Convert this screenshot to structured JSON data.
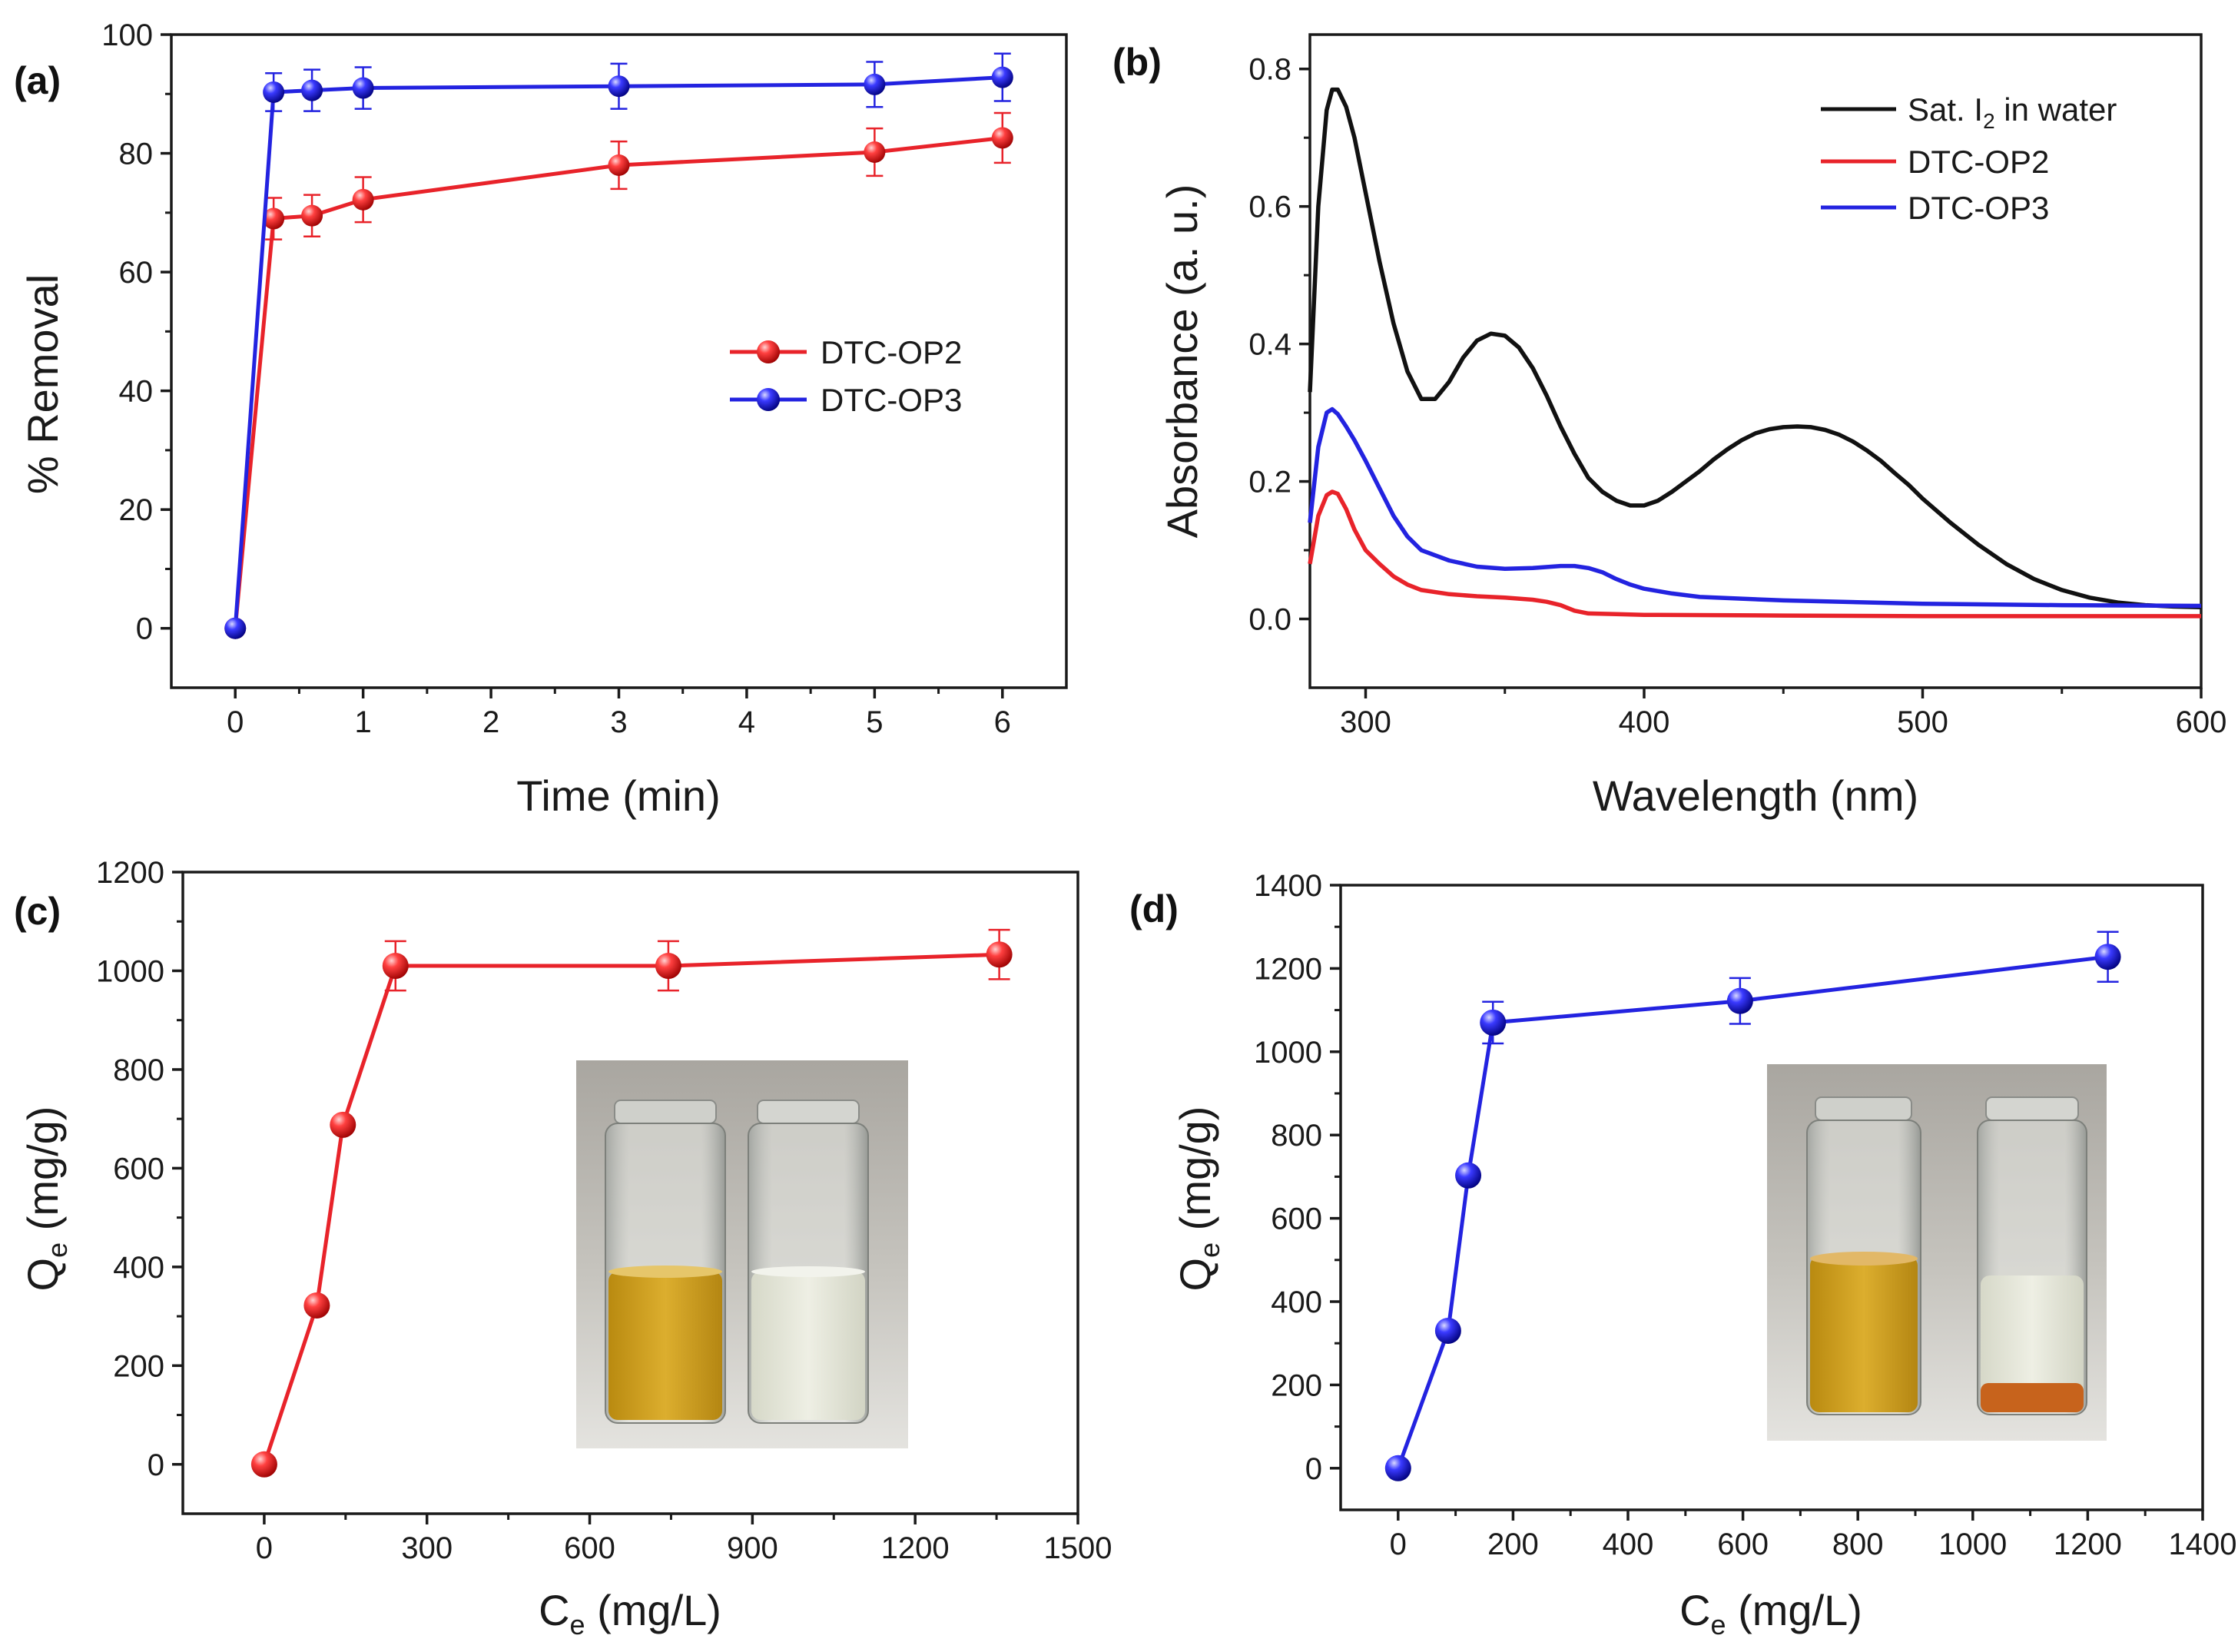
{
  "figure": {
    "colors": {
      "red": "#e8232a",
      "blue": "#2323e0",
      "black": "#111111"
    }
  },
  "chart_data": [
    {
      "panel": "(a)",
      "type": "line",
      "xlabel": "Time (min)",
      "ylabel": "% Removal",
      "xlim": [
        -0.5,
        6.5
      ],
      "ylim": [
        -10,
        100
      ],
      "xticks": [
        0,
        1,
        2,
        3,
        4,
        5,
        6
      ],
      "yticks": [
        0,
        20,
        40,
        60,
        80,
        100
      ],
      "legend": "center-right",
      "series": [
        {
          "name": "DTC-OP2",
          "color": "#e8232a",
          "x": [
            0,
            0.3,
            0.6,
            1,
            3,
            5,
            6
          ],
          "y": [
            0,
            69,
            69.5,
            72.2,
            78,
            80.2,
            82.6
          ],
          "err": [
            0,
            3.5,
            3.5,
            3.8,
            4,
            4,
            4.2
          ]
        },
        {
          "name": "DTC-OP3",
          "color": "#2323e0",
          "x": [
            0,
            0.3,
            0.6,
            1,
            3,
            5,
            6
          ],
          "y": [
            0,
            90.3,
            90.6,
            91,
            91.3,
            91.6,
            92.8
          ],
          "err": [
            0,
            3.2,
            3.5,
            3.5,
            3.8,
            3.8,
            4
          ]
        }
      ]
    },
    {
      "panel": "(b)",
      "type": "line",
      "xlabel": "Wavelength (nm)",
      "ylabel": "Absorbance (a. u.)",
      "xlim": [
        280,
        600
      ],
      "ylim": [
        -0.1,
        0.85
      ],
      "xticks": [
        300,
        400,
        500,
        600
      ],
      "yticks": [
        0.0,
        0.2,
        0.4,
        0.6,
        0.8
      ],
      "ytick_labels": [
        "0.0",
        "0.2",
        "0.4",
        "0.6",
        "0.8"
      ],
      "legend": "top-right",
      "series": [
        {
          "name": "Sat. I2 in water",
          "label_main": "Sat. I",
          "label_sub": "2",
          "label_rest": " in water",
          "color": "#111111",
          "x": [
            280,
            283,
            286,
            288,
            290,
            293,
            296,
            300,
            305,
            310,
            315,
            320,
            325,
            330,
            335,
            340,
            345,
            350,
            355,
            360,
            365,
            370,
            375,
            380,
            385,
            390,
            395,
            400,
            405,
            410,
            415,
            420,
            425,
            430,
            435,
            440,
            445,
            450,
            455,
            460,
            465,
            470,
            475,
            480,
            485,
            490,
            495,
            500,
            510,
            520,
            530,
            540,
            550,
            560,
            570,
            580,
            590,
            600
          ],
          "y": [
            0.33,
            0.6,
            0.74,
            0.77,
            0.77,
            0.745,
            0.7,
            0.62,
            0.52,
            0.43,
            0.36,
            0.32,
            0.32,
            0.345,
            0.38,
            0.405,
            0.415,
            0.412,
            0.395,
            0.365,
            0.325,
            0.28,
            0.24,
            0.205,
            0.185,
            0.172,
            0.165,
            0.165,
            0.172,
            0.185,
            0.2,
            0.215,
            0.232,
            0.247,
            0.26,
            0.27,
            0.276,
            0.279,
            0.28,
            0.279,
            0.275,
            0.268,
            0.258,
            0.245,
            0.23,
            0.212,
            0.195,
            0.175,
            0.14,
            0.108,
            0.08,
            0.058,
            0.042,
            0.031,
            0.024,
            0.02,
            0.018,
            0.017
          ]
        },
        {
          "name": "DTC-OP2",
          "color": "#e8232a",
          "x": [
            280,
            283,
            286,
            288,
            290,
            293,
            296,
            300,
            305,
            310,
            315,
            320,
            330,
            340,
            350,
            360,
            365,
            370,
            375,
            380,
            390,
            400,
            450,
            500,
            550,
            600
          ],
          "y": [
            0.08,
            0.15,
            0.18,
            0.185,
            0.182,
            0.16,
            0.13,
            0.1,
            0.08,
            0.062,
            0.05,
            0.042,
            0.036,
            0.033,
            0.031,
            0.028,
            0.025,
            0.02,
            0.012,
            0.008,
            0.007,
            0.006,
            0.005,
            0.004,
            0.004,
            0.004
          ]
        },
        {
          "name": "DTC-OP3",
          "color": "#2323e0",
          "x": [
            280,
            283,
            286,
            288,
            290,
            293,
            296,
            300,
            305,
            310,
            315,
            320,
            330,
            340,
            350,
            360,
            370,
            375,
            380,
            385,
            390,
            395,
            400,
            410,
            420,
            450,
            500,
            550,
            600
          ],
          "y": [
            0.14,
            0.25,
            0.3,
            0.305,
            0.298,
            0.28,
            0.26,
            0.23,
            0.19,
            0.15,
            0.12,
            0.1,
            0.085,
            0.076,
            0.073,
            0.074,
            0.077,
            0.077,
            0.074,
            0.068,
            0.058,
            0.05,
            0.044,
            0.037,
            0.032,
            0.027,
            0.022,
            0.02,
            0.019
          ]
        }
      ]
    },
    {
      "panel": "(c)",
      "type": "line",
      "xlabel_main": "C",
      "xlabel_sub": "e",
      "xlabel_rest": " (mg/L)",
      "ylabel_main": "Q",
      "ylabel_sub": "e",
      "ylabel_rest": " (mg/g)",
      "xlim": [
        -150,
        1500
      ],
      "ylim": [
        -100,
        1200
      ],
      "xticks": [
        0,
        300,
        600,
        900,
        1200,
        1500
      ],
      "yticks": [
        0,
        200,
        400,
        600,
        800,
        1000,
        1200
      ],
      "series": [
        {
          "name": "DTC-OP2",
          "color": "#e8232a",
          "x": [
            0,
            97,
            145,
            242,
            745,
            1355
          ],
          "y": [
            0,
            322,
            688,
            1010,
            1010,
            1033
          ],
          "err": [
            0,
            0,
            0,
            50,
            50,
            50
          ]
        }
      ],
      "inset": "photo"
    },
    {
      "panel": "(d)",
      "type": "line",
      "xlabel_main": "C",
      "xlabel_sub": "e",
      "xlabel_rest": " (mg/L)",
      "ylabel_main": "Q",
      "ylabel_sub": "e",
      "ylabel_rest": " (mg/g)",
      "xlim": [
        -100,
        1400
      ],
      "ylim": [
        -100,
        1400
      ],
      "xticks": [
        0,
        200,
        400,
        600,
        800,
        1000,
        1200,
        1400
      ],
      "yticks": [
        0,
        200,
        400,
        600,
        800,
        1000,
        1200,
        1400
      ],
      "series": [
        {
          "name": "DTC-OP3",
          "color": "#2323e0",
          "x": [
            0,
            87,
            122,
            165,
            595,
            1235
          ],
          "y": [
            0,
            330,
            703,
            1070,
            1122,
            1228
          ],
          "err": [
            0,
            0,
            0,
            50,
            55,
            60
          ]
        }
      ],
      "inset": "photo"
    }
  ]
}
